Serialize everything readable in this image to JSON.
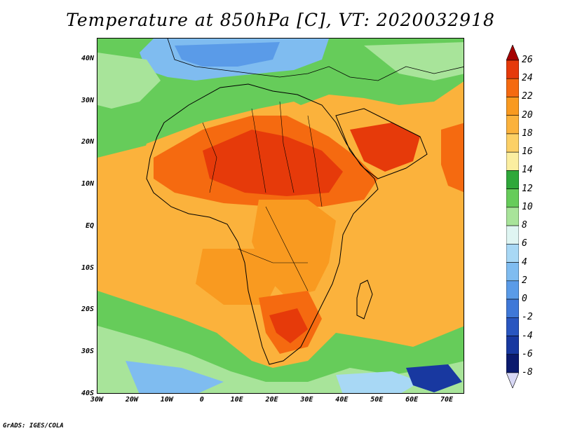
{
  "title": "Temperature at 850hPa [C], VT: 2020032918",
  "credit": "GrADS: IGES/COLA",
  "map": {
    "lon_range": [
      -30,
      75
    ],
    "lat_range": [
      -40,
      45
    ],
    "lat_ticks": [
      {
        "value": 40,
        "label": "40N"
      },
      {
        "value": 30,
        "label": "30N"
      },
      {
        "value": 20,
        "label": "20N"
      },
      {
        "value": 10,
        "label": "10N"
      },
      {
        "value": 0,
        "label": "EQ"
      },
      {
        "value": -10,
        "label": "10S"
      },
      {
        "value": -20,
        "label": "20S"
      },
      {
        "value": -30,
        "label": "30S"
      },
      {
        "value": -40,
        "label": "40S"
      }
    ],
    "lon_ticks": [
      {
        "value": -30,
        "label": "30W"
      },
      {
        "value": -20,
        "label": "20W"
      },
      {
        "value": -10,
        "label": "10W"
      },
      {
        "value": 0,
        "label": "0"
      },
      {
        "value": 10,
        "label": "10E"
      },
      {
        "value": 20,
        "label": "20E"
      },
      {
        "value": 30,
        "label": "30E"
      },
      {
        "value": 40,
        "label": "40E"
      },
      {
        "value": 50,
        "label": "50E"
      },
      {
        "value": 60,
        "label": "60E"
      },
      {
        "value": 70,
        "label": "70E"
      }
    ]
  },
  "colorbar": {
    "levels": [
      26,
      24,
      22,
      20,
      18,
      16,
      14,
      12,
      10,
      8,
      6,
      4,
      2,
      0,
      -2,
      -4,
      -6,
      -8
    ],
    "colors": [
      "#a50000",
      "#e63a0a",
      "#f56a10",
      "#f99a20",
      "#fbb23c",
      "#fcd066",
      "#fbeea0",
      "#2fa83a",
      "#66cc5a",
      "#a8e49a",
      "#dff5f2",
      "#a8d8f5",
      "#7fbcf0",
      "#5a9be8",
      "#3f78d8",
      "#2956c0",
      "#1838a0",
      "#0b1a6e",
      "#d8d8f5"
    ]
  }
}
